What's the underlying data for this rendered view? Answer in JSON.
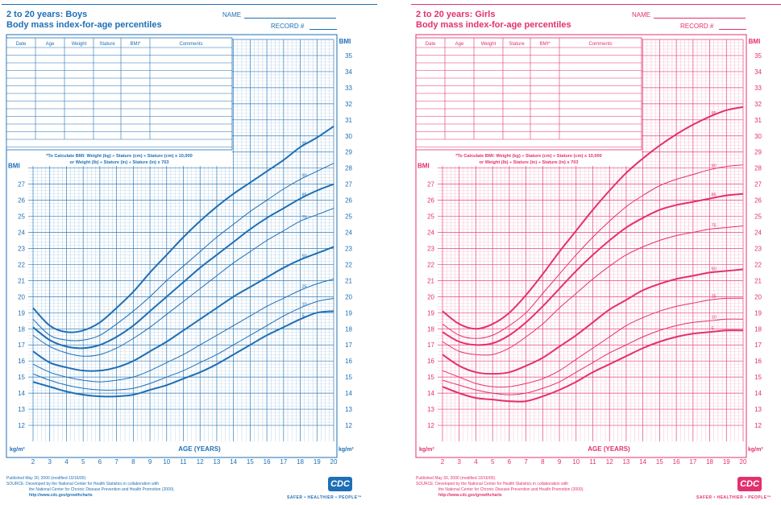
{
  "chart_data": [
    {
      "type": "line",
      "title": "2 to 20 years: Boys",
      "subtitle": "Body mass index-for-age percentiles",
      "xlabel": "AGE (YEARS)",
      "ylabel": "BMI",
      "y_unit": "kg/m²",
      "xlim": [
        2,
        20
      ],
      "ylim": [
        11,
        36
      ],
      "x_ticks": [
        2,
        3,
        4,
        5,
        6,
        7,
        8,
        9,
        10,
        11,
        12,
        13,
        14,
        15,
        16,
        17,
        18,
        19,
        20
      ],
      "y_ticks_lower": [
        12,
        13,
        14,
        15,
        16,
        17,
        18,
        19,
        20,
        21,
        22,
        23,
        24,
        25,
        26,
        27
      ],
      "y_ticks_right": [
        12,
        13,
        14,
        15,
        16,
        17,
        18,
        19,
        20,
        21,
        22,
        23,
        24,
        25,
        26,
        27,
        28,
        29,
        30,
        31,
        32,
        33,
        34,
        35
      ],
      "grid": true,
      "x": [
        2,
        3,
        4,
        5,
        6,
        7,
        8,
        9,
        10,
        11,
        12,
        13,
        14,
        15,
        16,
        17,
        18,
        19,
        20
      ],
      "series": [
        {
          "name": "95",
          "values": [
            19.3,
            18.2,
            17.8,
            17.9,
            18.4,
            19.3,
            20.3,
            21.5,
            22.6,
            23.7,
            24.7,
            25.6,
            26.4,
            27.1,
            27.8,
            28.5,
            29.3,
            29.9,
            30.6
          ]
        },
        {
          "name": "90",
          "values": [
            18.6,
            17.6,
            17.3,
            17.3,
            17.6,
            18.3,
            19.1,
            20.0,
            21.0,
            21.9,
            22.8,
            23.7,
            24.5,
            25.3,
            26.0,
            26.7,
            27.3,
            27.8,
            28.3
          ]
        },
        {
          "name": "85",
          "values": [
            18.1,
            17.3,
            16.9,
            16.8,
            17.0,
            17.5,
            18.2,
            19.1,
            20.0,
            20.9,
            21.8,
            22.6,
            23.4,
            24.2,
            24.9,
            25.5,
            26.1,
            26.6,
            27.0
          ]
        },
        {
          "name": "75",
          "values": [
            17.6,
            16.9,
            16.5,
            16.3,
            16.4,
            16.8,
            17.4,
            18.1,
            18.9,
            19.7,
            20.5,
            21.3,
            22.1,
            22.8,
            23.5,
            24.1,
            24.7,
            25.1,
            25.5
          ]
        },
        {
          "name": "50",
          "values": [
            16.6,
            15.9,
            15.6,
            15.4,
            15.4,
            15.6,
            16.0,
            16.6,
            17.2,
            17.9,
            18.6,
            19.3,
            20.0,
            20.6,
            21.2,
            21.8,
            22.3,
            22.7,
            23.1
          ]
        },
        {
          "name": "25",
          "values": [
            15.8,
            15.3,
            15.0,
            14.8,
            14.7,
            14.8,
            15.0,
            15.4,
            15.9,
            16.4,
            17.0,
            17.6,
            18.2,
            18.8,
            19.4,
            19.9,
            20.4,
            20.8,
            21.1
          ]
        },
        {
          "name": "10",
          "values": [
            15.2,
            14.8,
            14.5,
            14.3,
            14.2,
            14.2,
            14.3,
            14.6,
            15.0,
            15.4,
            15.9,
            16.4,
            17.0,
            17.6,
            18.2,
            18.8,
            19.3,
            19.7,
            19.9
          ]
        },
        {
          "name": "5",
          "values": [
            14.7,
            14.4,
            14.1,
            13.9,
            13.8,
            13.8,
            13.9,
            14.2,
            14.5,
            14.9,
            15.3,
            15.8,
            16.4,
            17.0,
            17.6,
            18.1,
            18.6,
            19.0,
            19.1
          ]
        }
      ]
    },
    {
      "type": "line",
      "title": "2 to 20 years: Girls",
      "subtitle": "Body mass index-for-age percentiles",
      "xlabel": "AGE (YEARS)",
      "ylabel": "BMI",
      "y_unit": "kg/m²",
      "xlim": [
        2,
        20
      ],
      "ylim": [
        11,
        36
      ],
      "x_ticks": [
        2,
        3,
        4,
        5,
        6,
        7,
        8,
        9,
        10,
        11,
        12,
        13,
        14,
        15,
        16,
        17,
        18,
        19,
        20
      ],
      "y_ticks_lower": [
        12,
        13,
        14,
        15,
        16,
        17,
        18,
        19,
        20,
        21,
        22,
        23,
        24,
        25,
        26,
        27
      ],
      "y_ticks_right": [
        12,
        13,
        14,
        15,
        16,
        17,
        18,
        19,
        20,
        21,
        22,
        23,
        24,
        25,
        26,
        27,
        28,
        29,
        30,
        31,
        32,
        33,
        34,
        35
      ],
      "grid": true,
      "x": [
        2,
        3,
        4,
        5,
        6,
        7,
        8,
        9,
        10,
        11,
        12,
        13,
        14,
        15,
        16,
        17,
        18,
        19,
        20
      ],
      "series": [
        {
          "name": "95",
          "values": [
            19.1,
            18.3,
            18.0,
            18.3,
            19.0,
            20.1,
            21.4,
            22.8,
            24.1,
            25.4,
            26.6,
            27.7,
            28.6,
            29.4,
            30.1,
            30.7,
            31.2,
            31.6,
            31.8
          ]
        },
        {
          "name": "90",
          "values": [
            18.3,
            17.6,
            17.4,
            17.6,
            18.2,
            19.0,
            20.2,
            21.4,
            22.6,
            23.7,
            24.7,
            25.6,
            26.3,
            26.9,
            27.3,
            27.6,
            27.9,
            28.1,
            28.2
          ]
        },
        {
          "name": "85",
          "values": [
            17.8,
            17.2,
            17.0,
            17.1,
            17.6,
            18.4,
            19.4,
            20.5,
            21.6,
            22.6,
            23.5,
            24.3,
            24.9,
            25.4,
            25.7,
            25.9,
            26.1,
            26.3,
            26.4
          ]
        },
        {
          "name": "75",
          "values": [
            17.2,
            16.6,
            16.4,
            16.4,
            16.8,
            17.5,
            18.3,
            19.3,
            20.2,
            21.1,
            21.9,
            22.6,
            23.1,
            23.5,
            23.8,
            24.0,
            24.2,
            24.3,
            24.4
          ]
        },
        {
          "name": "50",
          "values": [
            16.4,
            15.7,
            15.3,
            15.2,
            15.3,
            15.7,
            16.2,
            16.9,
            17.6,
            18.4,
            19.2,
            19.8,
            20.4,
            20.8,
            21.1,
            21.3,
            21.5,
            21.6,
            21.7
          ]
        },
        {
          "name": "25",
          "values": [
            15.4,
            15.0,
            14.6,
            14.4,
            14.4,
            14.6,
            14.9,
            15.4,
            16.1,
            16.8,
            17.5,
            18.2,
            18.7,
            19.1,
            19.4,
            19.6,
            19.8,
            19.9,
            19.9
          ]
        },
        {
          "name": "10",
          "values": [
            14.8,
            14.5,
            14.2,
            14.0,
            13.9,
            14.0,
            14.3,
            14.7,
            15.3,
            15.9,
            16.5,
            17.0,
            17.5,
            17.9,
            18.2,
            18.4,
            18.5,
            18.6,
            18.6
          ]
        },
        {
          "name": "5",
          "values": [
            14.4,
            14.0,
            13.7,
            13.6,
            13.5,
            13.5,
            13.8,
            14.2,
            14.7,
            15.3,
            15.8,
            16.3,
            16.8,
            17.2,
            17.5,
            17.7,
            17.8,
            17.9,
            17.9
          ]
        }
      ]
    }
  ],
  "panels": {
    "boys": {
      "color": "#1e6fb5",
      "title": "2 to 20 years: Boys",
      "subtitle": "Body mass index-for-age percentiles"
    },
    "girls": {
      "color": "#e3306f",
      "title": "2 to 20 years: Girls",
      "subtitle": "Body mass index-for-age percentiles"
    }
  },
  "labels": {
    "name": "NAME",
    "record": "RECORD #",
    "bmi": "BMI",
    "unit": "kg/m²",
    "age": "AGE (YEARS)",
    "table_headers": [
      "Date",
      "Age",
      "Weight",
      "Stature",
      "BMI*",
      "Comments"
    ],
    "formula_line1": "*To Calculate BMI: Weight (kg) ÷ Stature (cm) ÷ Stature (cm) x 10,000",
    "formula_line2": "or Weight (lb) ÷ Stature (in) ÷ Stature (in) x 703",
    "published": "Published May 30, 2000 (modified 10/16/00).",
    "source1": "SOURCE: Developed by the National Center for Health Statistics in collaboration with",
    "source2": "the National Center for Chronic Disease Prevention and Health Promotion (2000).",
    "url": "http://www.cdc.gov/growthcharts",
    "cdc": "CDC",
    "tagline": "SAFER • HEALTHIER • PEOPLE™"
  }
}
